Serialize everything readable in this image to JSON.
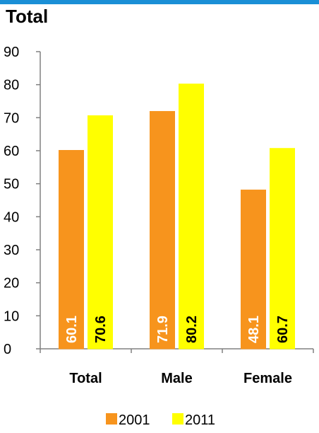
{
  "chart_data": {
    "type": "bar",
    "title": "Total",
    "categories": [
      "Total",
      "Male",
      "Female"
    ],
    "series": [
      {
        "name": "2001",
        "values": [
          60.1,
          71.9,
          48.1
        ],
        "color": "#f7941d"
      },
      {
        "name": "2011",
        "values": [
          70.6,
          80.2,
          60.7
        ],
        "color": "#ffff00"
      }
    ],
    "ylim": [
      0,
      90
    ],
    "yticks": [
      0,
      10,
      20,
      30,
      40,
      50,
      60,
      70,
      80,
      90
    ],
    "data_label_colors": {
      "2001": "#ffffff",
      "2011": "#000000"
    },
    "legend_position": "bottom",
    "grid": false
  },
  "header_strip": {
    "color": "#1a8fd6"
  }
}
